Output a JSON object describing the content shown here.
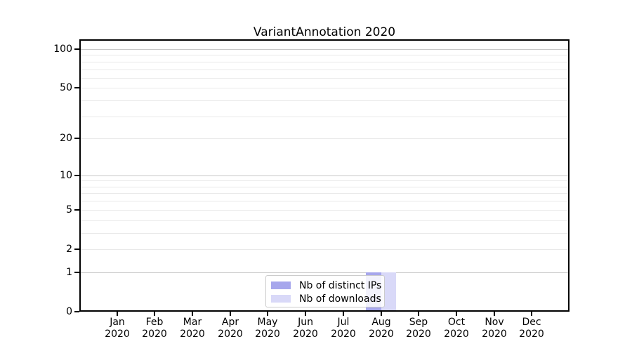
{
  "title": "VariantAnnotation 2020",
  "colors": {
    "ips_bar": "#a6a6ec",
    "downloads_bar": "#d9d9f8",
    "grid_major": "#c8c8c8",
    "grid_minor": "#e9e9e9",
    "axis_frame": "#000000",
    "legend_border": "#cccccc",
    "background": "#ffffff"
  },
  "chart_data": {
    "type": "bar",
    "title": "VariantAnnotation 2020",
    "x": [
      "Jan 2020",
      "Feb 2020",
      "Mar 2020",
      "Apr 2020",
      "May 2020",
      "Jun 2020",
      "Jul 2020",
      "Aug 2020",
      "Sep 2020",
      "Oct 2020",
      "Nov 2020",
      "Dec 2020"
    ],
    "x_tick_top": [
      "Jan",
      "Feb",
      "Mar",
      "Apr",
      "May",
      "Jun",
      "Jul",
      "Aug",
      "Sep",
      "Oct",
      "Nov",
      "Dec"
    ],
    "x_tick_bottom": "2020",
    "series": [
      {
        "name": "Nb of distinct IPs",
        "color": "#a6a6ec",
        "values": [
          0,
          0,
          0,
          0,
          0,
          0,
          0,
          1,
          0,
          0,
          0,
          0
        ]
      },
      {
        "name": "Nb of downloads",
        "color": "#d9d9f8",
        "values": [
          0,
          0,
          0,
          0,
          0,
          0,
          0,
          1,
          0,
          0,
          0,
          0
        ]
      }
    ],
    "y_axis": {
      "scale": "log10(value+1)",
      "tick_values": [
        0,
        1,
        2,
        5,
        10,
        20,
        50,
        100
      ],
      "tick_labels": [
        "0",
        "1",
        "2",
        "5",
        "10",
        "20",
        "50",
        "100"
      ],
      "major_grid_values": [
        1,
        10,
        100
      ],
      "minor_grid_values": [
        3,
        4,
        6,
        7,
        8,
        9,
        30,
        40,
        60,
        70,
        80,
        90
      ],
      "ylim": [
        0,
        100
      ]
    },
    "grid": true,
    "legend_position": "lower center"
  }
}
